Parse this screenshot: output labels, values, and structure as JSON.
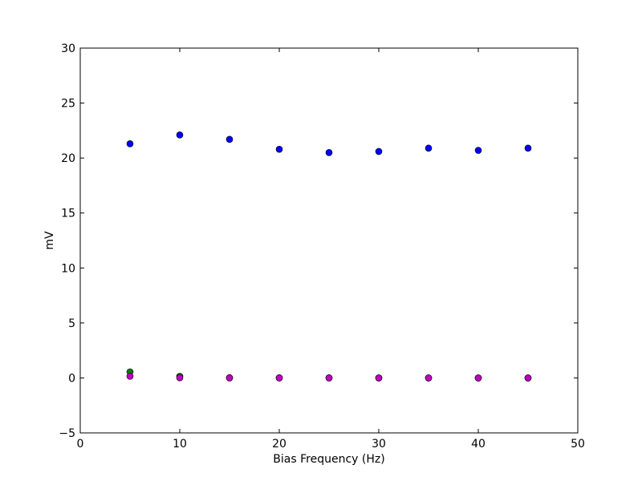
{
  "chart_data": {
    "type": "scatter",
    "title": "",
    "xlabel": "Bias Frequency (Hz)",
    "ylabel": "mV",
    "xlim": [
      0,
      50
    ],
    "ylim": [
      -5,
      30
    ],
    "xticks": [
      0,
      10,
      20,
      30,
      40,
      50
    ],
    "yticks": [
      -5,
      0,
      5,
      10,
      15,
      20,
      25,
      30
    ],
    "xtick_labels": [
      "0",
      "10",
      "20",
      "30",
      "40",
      "50"
    ],
    "ytick_labels": [
      "−5",
      "0",
      "5",
      "10",
      "15",
      "20",
      "25",
      "30"
    ],
    "grid": false,
    "legend": "none",
    "x": [
      5,
      10,
      15,
      20,
      25,
      30,
      35,
      40,
      45
    ],
    "series": [
      {
        "color": "#0000ff",
        "values": [
          21.3,
          22.1,
          21.7,
          20.8,
          20.5,
          20.6,
          20.9,
          20.7,
          20.9
        ]
      },
      {
        "color": "#008000",
        "values": [
          0.55,
          0.15,
          0.02,
          0.01,
          0.01,
          0.0,
          0.0,
          0.0,
          0.0
        ]
      },
      {
        "color": "#bf00bf",
        "values": [
          0.15,
          0.02,
          0.0,
          0.0,
          0.0,
          0.0,
          0.0,
          0.0,
          0.0
        ]
      }
    ]
  }
}
